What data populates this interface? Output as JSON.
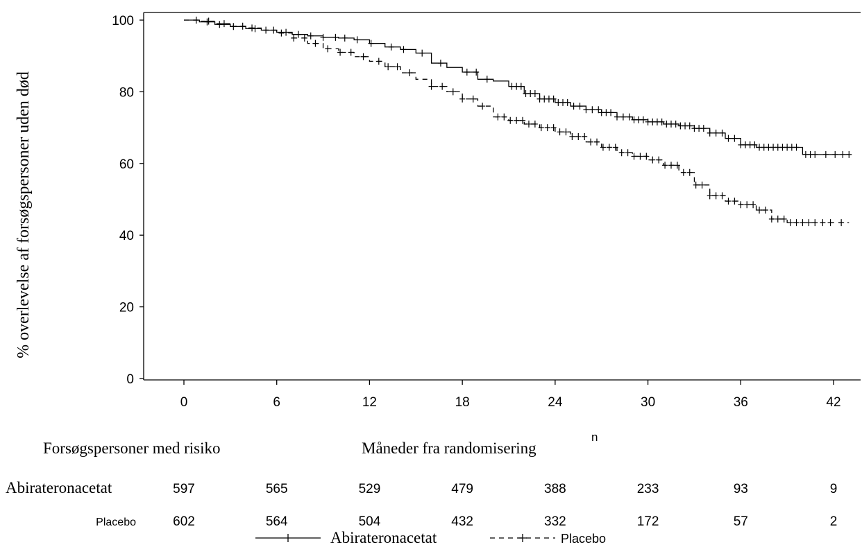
{
  "chart_data": {
    "type": "line",
    "title": "",
    "xlabel": "Måneder fra randomisering",
    "ylabel": "% overlevelse af forsøgspersoner uden død",
    "x_unit_marker": "n",
    "xlim": [
      -4.5,
      43.5
    ],
    "ylim": [
      -1.5,
      102
    ],
    "x_ticks": [
      0,
      6,
      12,
      18,
      24,
      30,
      36,
      42
    ],
    "y_ticks": [
      0,
      20,
      40,
      60,
      80,
      100
    ],
    "grid": false,
    "legend_position": "bottom",
    "series": [
      {
        "name": "Abirateronacetat",
        "line_style": "solid",
        "points": [
          [
            0,
            100
          ],
          [
            1,
            99.5
          ],
          [
            2,
            98.8
          ],
          [
            3,
            98.2
          ],
          [
            4,
            97.6
          ],
          [
            5,
            97.2
          ],
          [
            6,
            96.6
          ],
          [
            7,
            96.0
          ],
          [
            8,
            95.6
          ],
          [
            9,
            95.2
          ],
          [
            10,
            95.0
          ],
          [
            11,
            94.5
          ],
          [
            12,
            93.5
          ],
          [
            13,
            92.5
          ],
          [
            14,
            91.8
          ],
          [
            15,
            90.8
          ],
          [
            16,
            88.0
          ],
          [
            17,
            86.8
          ],
          [
            18,
            85.5
          ],
          [
            19,
            83.5
          ],
          [
            20,
            83.0
          ],
          [
            21,
            81.5
          ],
          [
            22,
            79.5
          ],
          [
            23,
            78.0
          ],
          [
            24,
            77.0
          ],
          [
            25,
            76.0
          ],
          [
            26,
            75.0
          ],
          [
            27,
            74.2
          ],
          [
            28,
            73.0
          ],
          [
            29,
            72.2
          ],
          [
            30,
            71.6
          ],
          [
            31,
            71.0
          ],
          [
            32,
            70.5
          ],
          [
            33,
            69.8
          ],
          [
            34,
            68.5
          ],
          [
            35,
            67.0
          ],
          [
            36,
            65.2
          ],
          [
            37,
            64.5
          ],
          [
            38,
            64.5
          ],
          [
            39,
            64.5
          ],
          [
            40,
            62.5
          ],
          [
            41,
            62.5
          ],
          [
            42,
            62.5
          ],
          [
            43,
            62.5
          ]
        ],
        "censor_marks": [
          1.5,
          2.3,
          3.2,
          4.6,
          5.8,
          6.6,
          7.4,
          8.2,
          9.0,
          9.8,
          10.4,
          11.2,
          12.1,
          13.4,
          14.2,
          15.4,
          16.6,
          18.3,
          18.9,
          19.6,
          21.2,
          21.5,
          21.8,
          22.1,
          22.4,
          22.7,
          23.0,
          23.3,
          23.6,
          23.9,
          24.2,
          24.5,
          24.8,
          25.2,
          25.6,
          26.0,
          26.4,
          26.8,
          27.0,
          27.3,
          27.6,
          28.0,
          28.4,
          28.8,
          29.1,
          29.4,
          29.7,
          30.0,
          30.3,
          30.6,
          30.9,
          31.2,
          31.5,
          31.8,
          32.1,
          32.4,
          32.7,
          33.0,
          33.3,
          33.6,
          34.0,
          34.4,
          34.8,
          35.2,
          35.6,
          36.0,
          36.3,
          36.6,
          36.9,
          37.2,
          37.5,
          37.8,
          38.1,
          38.4,
          38.7,
          39.0,
          39.3,
          39.6,
          40.2,
          40.5,
          40.8,
          41.5,
          42.1,
          42.6,
          43.0
        ]
      },
      {
        "name": "Placebo",
        "line_style": "dashed",
        "points": [
          [
            0,
            100
          ],
          [
            1,
            99.7
          ],
          [
            2,
            99.0
          ],
          [
            3,
            98.3
          ],
          [
            4,
            97.8
          ],
          [
            5,
            97.2
          ],
          [
            6,
            96.4
          ],
          [
            7,
            95.0
          ],
          [
            8,
            93.5
          ],
          [
            9,
            92.0
          ],
          [
            10,
            91.0
          ],
          [
            11,
            89.8
          ],
          [
            12,
            88.5
          ],
          [
            13,
            87.0
          ],
          [
            14,
            85.3
          ],
          [
            15,
            83.5
          ],
          [
            16,
            81.5
          ],
          [
            17,
            80.0
          ],
          [
            18,
            78.0
          ],
          [
            19,
            76.0
          ],
          [
            20,
            73.0
          ],
          [
            21,
            72.0
          ],
          [
            22,
            71.0
          ],
          [
            23,
            70.0
          ],
          [
            24,
            68.8
          ],
          [
            25,
            67.5
          ],
          [
            26,
            66.0
          ],
          [
            27,
            64.5
          ],
          [
            28,
            63.0
          ],
          [
            29,
            62.0
          ],
          [
            30,
            61.0
          ],
          [
            31,
            59.5
          ],
          [
            32,
            57.5
          ],
          [
            33,
            54.0
          ],
          [
            34,
            51.0
          ],
          [
            35,
            49.5
          ],
          [
            36,
            48.5
          ],
          [
            37,
            47.0
          ],
          [
            38,
            44.5
          ],
          [
            39,
            43.5
          ],
          [
            40,
            43.5
          ],
          [
            41,
            43.5
          ],
          [
            42,
            43.5
          ],
          [
            43,
            43.5
          ]
        ],
        "censor_marks": [
          0.8,
          1.6,
          2.6,
          3.8,
          4.4,
          5.3,
          6.3,
          7.1,
          7.8,
          8.5,
          9.3,
          10.1,
          10.8,
          11.6,
          12.6,
          13.2,
          13.8,
          14.6,
          16.0,
          16.7,
          17.4,
          18.0,
          18.7,
          19.3,
          20.3,
          20.7,
          21.1,
          21.5,
          21.9,
          22.3,
          22.7,
          23.1,
          23.5,
          23.9,
          24.3,
          24.7,
          25.1,
          25.5,
          25.9,
          26.3,
          26.7,
          27.1,
          27.5,
          27.9,
          28.3,
          28.7,
          29.1,
          29.5,
          29.9,
          30.3,
          30.7,
          31.1,
          31.5,
          31.9,
          32.3,
          32.7,
          33.1,
          33.5,
          34.0,
          34.4,
          34.8,
          35.2,
          35.6,
          36.0,
          36.4,
          36.8,
          37.2,
          37.6,
          38.0,
          38.4,
          38.8,
          39.2,
          39.6,
          40.0,
          40.4,
          40.8,
          41.3,
          41.8,
          42.5
        ]
      }
    ],
    "risk_table": {
      "title": "Forsøgspersoner med risiko",
      "times": [
        0,
        6,
        12,
        18,
        24,
        30,
        36,
        42
      ],
      "rows": [
        {
          "label": "Abirateronacetat",
          "values": [
            "597",
            "565",
            "529",
            "479",
            "388",
            "233",
            "93",
            "9"
          ]
        },
        {
          "label": "Placebo",
          "values": [
            "602",
            "564",
            "504",
            "432",
            "332",
            "172",
            "57",
            "2"
          ]
        }
      ]
    },
    "legend": [
      {
        "label": "Abirateronacetat",
        "line_style": "solid"
      },
      {
        "label": "Placebo",
        "line_style": "dashed"
      }
    ],
    "colors": {
      "line": "#000000",
      "text": "#000000",
      "background": "#ffffff"
    }
  }
}
